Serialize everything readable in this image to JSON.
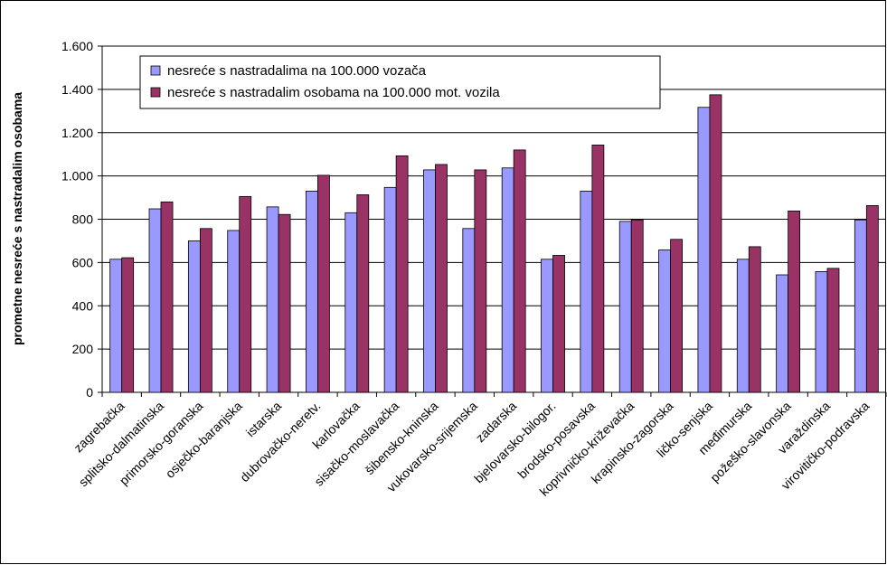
{
  "chart_data": {
    "type": "bar",
    "y_label": "prometne nesreće s nastradalim osobama",
    "categories": [
      "zagrebačka",
      "splitsko-dalmatinska",
      "primorsko-goranska",
      "osječko-baranjska",
      "istarska",
      "dubrovačko-neretv.",
      "karlovačka",
      "sisačko-moslavačka",
      "šibensko-kninska",
      "vukovarsko-srijemska",
      "zadarska",
      "bjelovarsko-bilogor.",
      "brodsko-posavska",
      "koprivničko-križevačka",
      "krapinsko-zagorska",
      "ličko-senjska",
      "međimurska",
      "požeško-slavonska",
      "varaždinska",
      "virovitičko-podravska"
    ],
    "series": [
      {
        "name": "nesreće s nastradalima na 100.000 vozača",
        "color": "#9999ff",
        "values": [
          615,
          848,
          700,
          748,
          857,
          930,
          830,
          947,
          1028,
          757,
          1037,
          615,
          930,
          790,
          658,
          1317,
          615,
          543,
          558,
          797
        ]
      },
      {
        "name": "nesreće s nastradalim osobama na 100.000 mot. vozila",
        "color": "#993366",
        "values": [
          622,
          880,
          757,
          905,
          822,
          1003,
          913,
          1093,
          1053,
          1028,
          1120,
          633,
          1143,
          797,
          707,
          1375,
          673,
          838,
          573,
          863
        ]
      }
    ],
    "ylim": [
      0,
      1600
    ],
    "yticks": [
      0,
      200,
      400,
      600,
      800,
      {
        "value": 1000,
        "label": "1.000"
      },
      {
        "value": 1200,
        "label": "1.200"
      },
      {
        "value": 1400,
        "label": "1.400"
      },
      {
        "value": 1600,
        "label": "1.600"
      }
    ],
    "grid": true,
    "legend": "top-left"
  }
}
